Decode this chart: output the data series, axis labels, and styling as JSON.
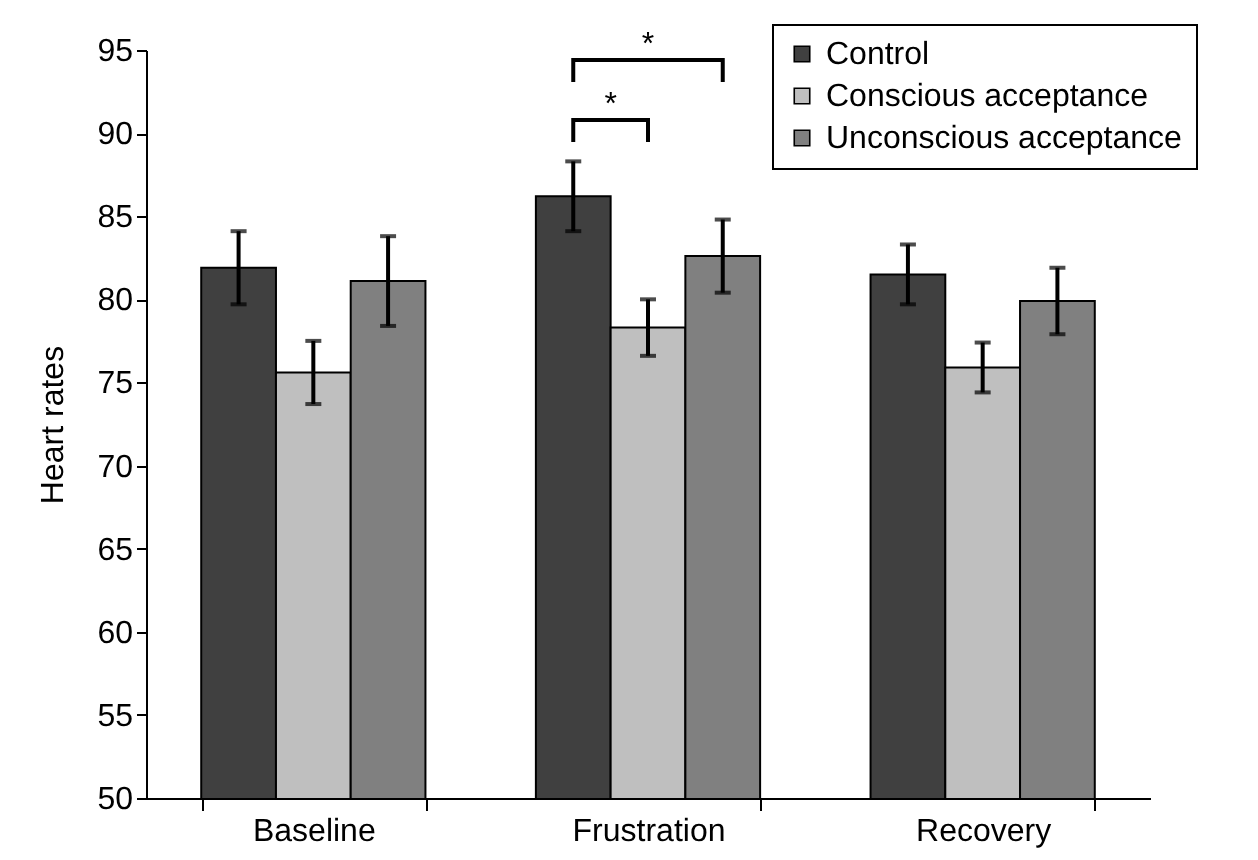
{
  "chart_data": {
    "type": "bar",
    "ylabel": "Heart rates",
    "categories": [
      "Baseline",
      "Frustration",
      "Recovery"
    ],
    "series": [
      {
        "name": "Control",
        "color": "#404040",
        "values": [
          81.9,
          86.2,
          81.5
        ],
        "errors": [
          2.2,
          2.1,
          1.8
        ]
      },
      {
        "name": "Conscious acceptance",
        "color": "#bfbfbf",
        "values": [
          75.6,
          78.3,
          75.9
        ],
        "errors": [
          1.9,
          1.7,
          1.5
        ]
      },
      {
        "name": "Unconscious acceptance",
        "color": "#808080",
        "values": [
          81.1,
          82.6,
          79.9
        ],
        "errors": [
          2.7,
          2.2,
          2.0
        ]
      }
    ],
    "ylim": [
      50,
      95
    ],
    "yticks": [
      50,
      55,
      60,
      65,
      70,
      75,
      80,
      85,
      90,
      95
    ],
    "grid": false,
    "legend": "top right",
    "annotations": [
      "*",
      "*"
    ]
  }
}
